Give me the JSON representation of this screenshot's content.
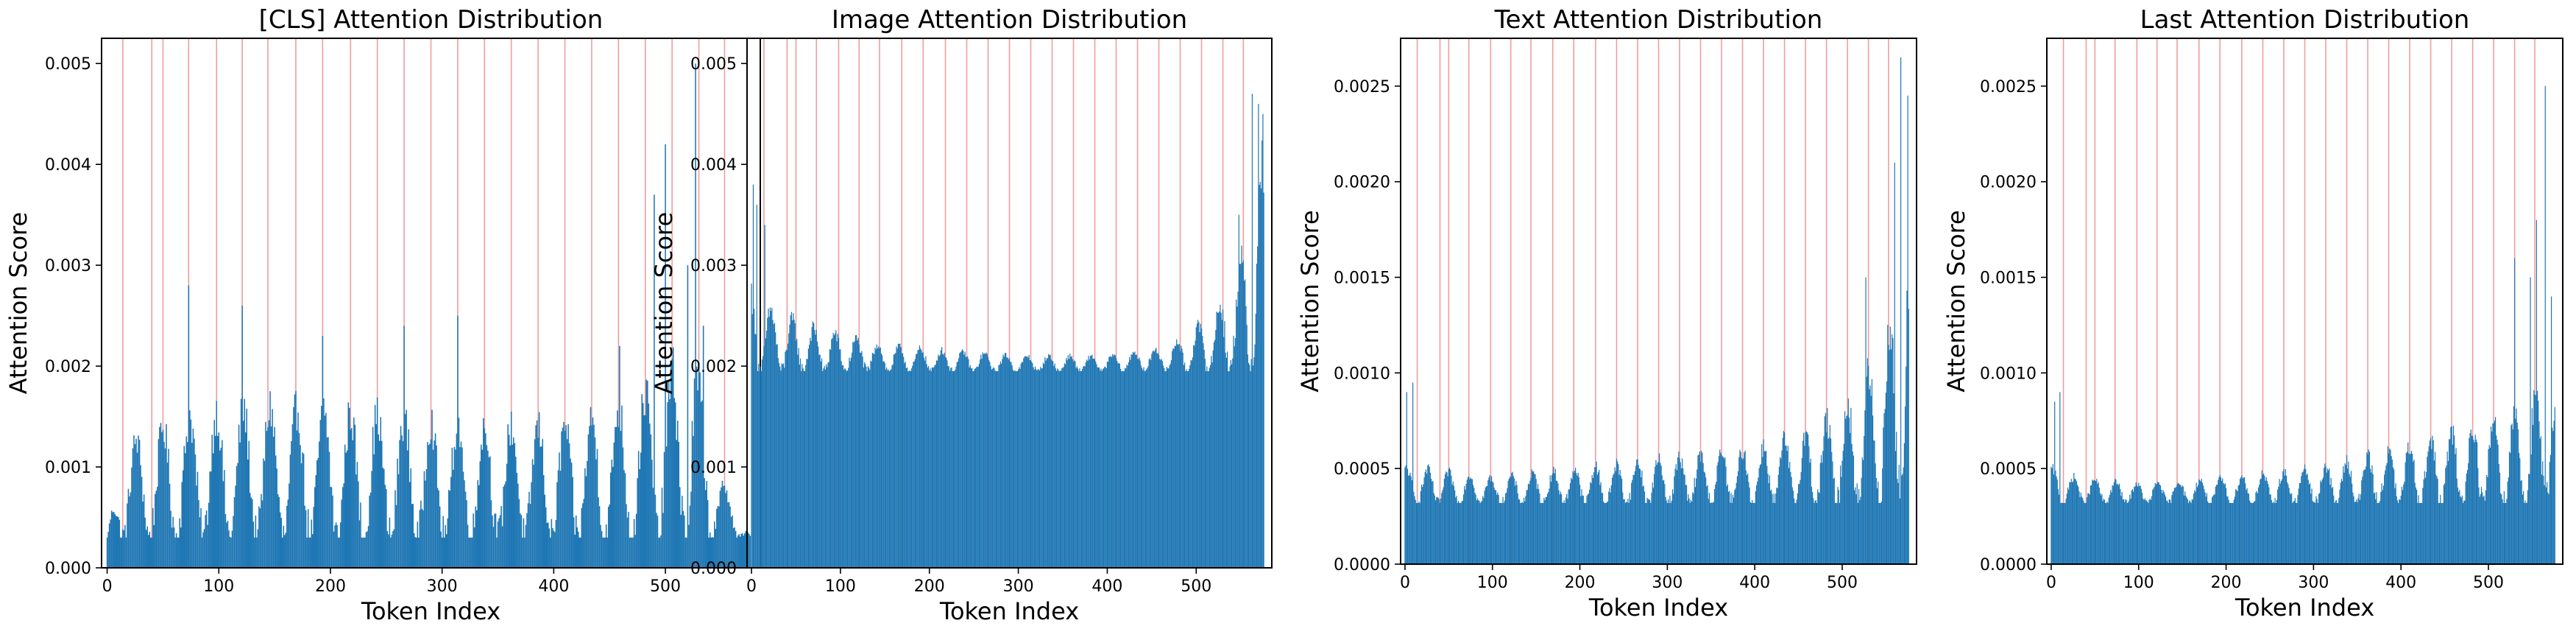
{
  "chart_data": [
    {
      "type": "bar",
      "title": "[CLS] Attention Distribution",
      "xlabel": "Token Index",
      "ylabel": "Attention Score",
      "xlim": [
        -5,
        585
      ],
      "ylim": [
        0,
        0.00525
      ],
      "xticks": [
        "0",
        "100",
        "200",
        "300",
        "400",
        "500"
      ],
      "yticks": [
        "0.000",
        "0.001",
        "0.002",
        "0.003",
        "0.004",
        "0.005"
      ],
      "grid": false,
      "color": "#1f77b4",
      "marker_color": "#d62728",
      "n_tokens": 577,
      "markers": [
        14,
        40,
        50,
        73,
        98,
        121,
        144,
        169,
        193,
        218,
        242,
        266,
        290,
        314,
        338,
        362,
        386,
        410,
        434,
        458,
        482,
        506,
        530,
        553
      ],
      "profile": {
        "envelope": [
          [
            0,
            0.0003
          ],
          [
            14,
            0.0012
          ],
          [
            73,
            0.0015
          ],
          [
            150,
            0.0016
          ],
          [
            250,
            0.0015
          ],
          [
            330,
            0.0014
          ],
          [
            420,
            0.0014
          ],
          [
            480,
            0.0017
          ],
          [
            525,
            0.0021
          ],
          [
            545,
            0.001
          ],
          [
            577,
            0.0003
          ]
        ],
        "trough": 0.0003,
        "period": 24,
        "phase": 14,
        "peaks": [
          [
            73,
            0.0028
          ],
          [
            121,
            0.0026
          ],
          [
            193,
            0.0023
          ],
          [
            266,
            0.0024
          ],
          [
            314,
            0.0025
          ],
          [
            459,
            0.0022
          ],
          [
            490,
            0.0037
          ],
          [
            500,
            0.0042
          ],
          [
            520,
            0.003
          ],
          [
            527,
            0.005
          ],
          [
            534,
            0.0024
          ]
        ]
      }
    },
    {
      "type": "bar",
      "title": "Image Attention Distribution",
      "xlabel": "Token Index",
      "ylabel": "Attention Score",
      "xlim": [
        -5,
        585
      ],
      "ylim": [
        0,
        0.00525
      ],
      "xticks": [
        "0",
        "100",
        "200",
        "300",
        "400",
        "500"
      ],
      "yticks": [
        "0.000",
        "0.001",
        "0.002",
        "0.003",
        "0.004",
        "0.005"
      ],
      "grid": false,
      "color": "#1f77b4",
      "marker_color": "#d62728",
      "n_tokens": 577,
      "markers": [
        14,
        40,
        50,
        73,
        98,
        121,
        144,
        169,
        193,
        218,
        242,
        266,
        290,
        314,
        338,
        362,
        386,
        410,
        434,
        458,
        482,
        506,
        530,
        553
      ],
      "profile": {
        "envelope": [
          [
            0,
            0.0028
          ],
          [
            10,
            0.0026
          ],
          [
            60,
            0.0024
          ],
          [
            150,
            0.0022
          ],
          [
            300,
            0.0021
          ],
          [
            400,
            0.0021
          ],
          [
            470,
            0.0022
          ],
          [
            520,
            0.0025
          ],
          [
            555,
            0.0031
          ],
          [
            577,
            0.0042
          ]
        ],
        "trough": 0.00195,
        "period": 24,
        "phase": 10,
        "peaks": [
          [
            2,
            0.0038
          ],
          [
            6,
            0.0036
          ],
          [
            15,
            0.0034
          ],
          [
            548,
            0.0035
          ],
          [
            563,
            0.0047
          ],
          [
            570,
            0.0046
          ],
          [
            575,
            0.0045
          ]
        ]
      }
    },
    {
      "type": "bar",
      "title": "Text Attention Distribution",
      "xlabel": "Token Index",
      "ylabel": "Attention Score",
      "xlim": [
        -5,
        585
      ],
      "ylim": [
        0,
        0.00275
      ],
      "xticks": [
        "0",
        "100",
        "200",
        "300",
        "400",
        "500"
      ],
      "yticks": [
        "0.0000",
        "0.0005",
        "0.0010",
        "0.0015",
        "0.0020",
        "0.0025"
      ],
      "grid": false,
      "color": "#1f77b4",
      "marker_color": "#d62728",
      "n_tokens": 577,
      "markers": [
        14,
        40,
        50,
        73,
        98,
        121,
        144,
        169,
        193,
        218,
        242,
        266,
        290,
        314,
        338,
        362,
        386,
        410,
        434,
        458,
        482,
        506,
        530,
        553
      ],
      "profile": {
        "envelope": [
          [
            0,
            0.0005
          ],
          [
            20,
            0.0005
          ],
          [
            100,
            0.00045
          ],
          [
            200,
            0.0005
          ],
          [
            300,
            0.00055
          ],
          [
            400,
            0.0006
          ],
          [
            470,
            0.0007
          ],
          [
            520,
            0.0009
          ],
          [
            550,
            0.0012
          ],
          [
            577,
            0.0016
          ]
        ],
        "trough": 0.00032,
        "period": 24,
        "phase": 14,
        "peaks": [
          [
            2,
            0.0009
          ],
          [
            9,
            0.00095
          ],
          [
            527,
            0.0015
          ],
          [
            560,
            0.0021
          ],
          [
            567,
            0.00265
          ],
          [
            575,
            0.00245
          ]
        ]
      }
    },
    {
      "type": "bar",
      "title": "Last Attention Distribution",
      "xlabel": "Token Index",
      "ylabel": "Attention Score",
      "xlim": [
        -5,
        585
      ],
      "ylim": [
        0,
        0.00275
      ],
      "xticks": [
        "0",
        "100",
        "200",
        "300",
        "400",
        "500"
      ],
      "yticks": [
        "0.0000",
        "0.0005",
        "0.0010",
        "0.0015",
        "0.0020",
        "0.0025"
      ],
      "grid": false,
      "color": "#1f77b4",
      "marker_color": "#d62728",
      "n_tokens": 577,
      "markers": [
        14,
        40,
        50,
        73,
        98,
        121,
        144,
        169,
        193,
        218,
        242,
        266,
        290,
        314,
        338,
        362,
        386,
        410,
        434,
        458,
        482,
        506,
        530,
        553
      ],
      "profile": {
        "envelope": [
          [
            0,
            0.0005
          ],
          [
            30,
            0.00045
          ],
          [
            100,
            0.00042
          ],
          [
            200,
            0.00045
          ],
          [
            300,
            0.0005
          ],
          [
            400,
            0.0006
          ],
          [
            470,
            0.0007
          ],
          [
            530,
            0.0008
          ],
          [
            577,
            0.00095
          ]
        ],
        "trough": 0.00032,
        "period": 24,
        "phase": 14,
        "peaks": [
          [
            4,
            0.00085
          ],
          [
            10,
            0.0009
          ],
          [
            530,
            0.0016
          ],
          [
            548,
            0.0015
          ],
          [
            555,
            0.0018
          ],
          [
            565,
            0.0025
          ],
          [
            572,
            0.0014
          ]
        ]
      }
    }
  ]
}
